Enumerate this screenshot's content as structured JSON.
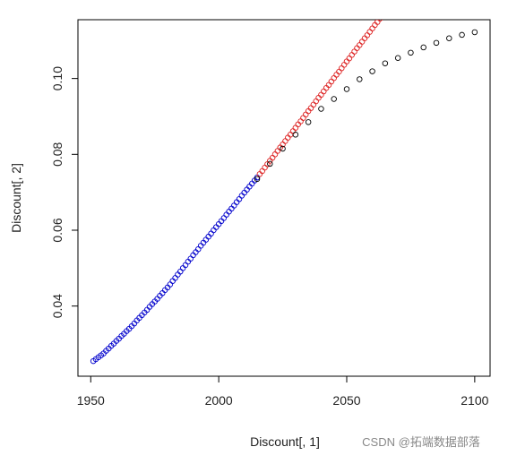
{
  "chart_data": {
    "type": "scatter",
    "xlabel": "Discount[, 1]",
    "ylabel": "Discount[, 2]",
    "xlim": [
      1945,
      2106
    ],
    "ylim": [
      0.0215,
      0.1155
    ],
    "xticks": [
      1950,
      2000,
      2050,
      2100
    ],
    "yticks": [
      0.04,
      0.06,
      0.08,
      {
        "value": 0.1,
        "label": "0.10"
      }
    ],
    "watermark": "CSDN @拓端数据部落",
    "series": [
      {
        "color": "#0000cc",
        "x": [
          1951,
          1952,
          1953,
          1954,
          1955,
          1956,
          1957,
          1958,
          1959,
          1960,
          1961,
          1962,
          1963,
          1964,
          1965,
          1966,
          1967,
          1968,
          1969,
          1970,
          1971,
          1972,
          1973,
          1974,
          1975,
          1976,
          1977,
          1978,
          1979,
          1980,
          1981,
          1982,
          1983,
          1984,
          1985,
          1986,
          1987,
          1988,
          1989,
          1990,
          1991,
          1992,
          1993,
          1994,
          1995,
          1996,
          1997,
          1998,
          1999,
          2000,
          2001,
          2002,
          2003,
          2004,
          2005,
          2006,
          2007,
          2008,
          2009,
          2010,
          2011,
          2012,
          2013,
          2014,
          2015
        ],
        "values": [
          0.0255,
          0.026,
          0.0265,
          0.027,
          0.0275,
          0.0282,
          0.0288,
          0.0295,
          0.0301,
          0.0308,
          0.0314,
          0.0321,
          0.0327,
          0.0334,
          0.034,
          0.0347,
          0.0354,
          0.0362,
          0.0369,
          0.0376,
          0.0383,
          0.039,
          0.0398,
          0.0405,
          0.0412,
          0.0419,
          0.0427,
          0.0434,
          0.0442,
          0.0449,
          0.0457,
          0.0466,
          0.0474,
          0.0483,
          0.0491,
          0.05,
          0.0508,
          0.0517,
          0.0525,
          0.0534,
          0.0542,
          0.055,
          0.0559,
          0.0567,
          0.0575,
          0.0583,
          0.0591,
          0.06,
          0.0608,
          0.0616,
          0.0624,
          0.0632,
          0.0641,
          0.0649,
          0.0657,
          0.0665,
          0.0674,
          0.0682,
          0.0691,
          0.0699,
          0.0707,
          0.0715,
          0.0723,
          0.0731,
          0.0739
        ]
      },
      {
        "color": "#dd2222",
        "x": [
          2016,
          2017,
          2018,
          2019,
          2020,
          2021,
          2022,
          2023,
          2024,
          2025,
          2026,
          2027,
          2028,
          2029,
          2030,
          2031,
          2032,
          2033,
          2034,
          2035,
          2036,
          2037,
          2038,
          2039,
          2040,
          2041,
          2042,
          2043,
          2044,
          2045,
          2046,
          2047,
          2048,
          2049,
          2050,
          2051,
          2052,
          2053,
          2054,
          2055,
          2056,
          2057,
          2058,
          2059,
          2060,
          2061,
          2062,
          2063
        ],
        "values": [
          0.0748,
          0.0756,
          0.0765,
          0.0774,
          0.0783,
          0.0791,
          0.08,
          0.0809,
          0.0818,
          0.0826,
          0.0835,
          0.0844,
          0.0852,
          0.0861,
          0.087,
          0.0879,
          0.0887,
          0.0896,
          0.0905,
          0.0914,
          0.0922,
          0.0931,
          0.094,
          0.0949,
          0.0957,
          0.0966,
          0.0975,
          0.0983,
          0.0992,
          0.1001,
          0.101,
          0.1018,
          0.1027,
          0.1036,
          0.1045,
          0.1053,
          0.1062,
          0.1071,
          0.108,
          0.1088,
          0.1097,
          0.1106,
          0.1114,
          0.1123,
          0.1132,
          0.1141,
          0.1149,
          0.1158
        ]
      },
      {
        "color": "#000000",
        "x": [
          2015,
          2020,
          2025,
          2030,
          2035,
          2040,
          2045,
          2050,
          2055,
          2060,
          2065,
          2070,
          2075,
          2080,
          2085,
          2090,
          2095,
          2100
        ],
        "values": [
          0.0735,
          0.0775,
          0.0815,
          0.0852,
          0.0885,
          0.092,
          0.0946,
          0.0972,
          0.0998,
          0.1019,
          0.104,
          0.1054,
          0.1068,
          0.1082,
          0.1094,
          0.1106,
          0.1115,
          0.1122
        ]
      }
    ]
  }
}
